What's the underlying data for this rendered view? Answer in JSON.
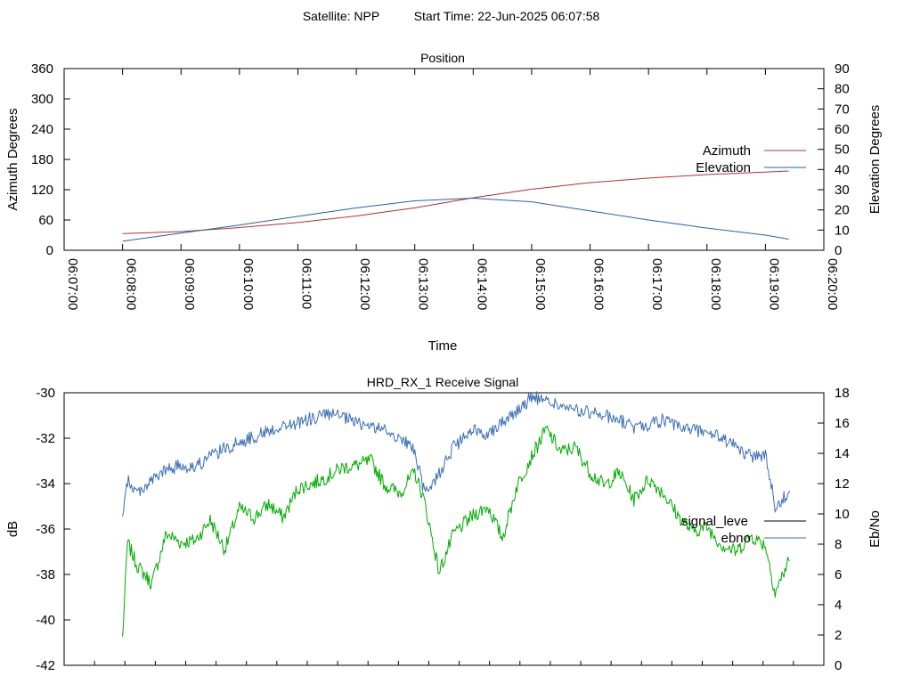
{
  "header": {
    "satellite_label": "Satellite: NPP",
    "start_time_label": "Start Time: 22-Jun-2025 06:07:58"
  },
  "colors": {
    "azimuth": "#b03030",
    "elevation": "#2a5ea8",
    "signal_level": "#000000",
    "signal_level_trace": "#00aa00",
    "ebno": "#3a6db5"
  },
  "chart_data": [
    {
      "type": "line",
      "title": "Position",
      "xlabel": "Time",
      "ylabel": "Azimuth Degrees",
      "y2label": "Elevation Degrees",
      "xlim": [
        "06:07:00",
        "06:20:00"
      ],
      "ylim": [
        0,
        360
      ],
      "y2lim": [
        0,
        90
      ],
      "x_ticks": [
        "06:07:00",
        "06:08:00",
        "06:09:00",
        "06:10:00",
        "06:11:00",
        "06:12:00",
        "06:13:00",
        "06:14:00",
        "06:15:00",
        "06:16:00",
        "06:17:00",
        "06:18:00",
        "06:19:00",
        "06:20:00"
      ],
      "y_ticks": [
        0,
        60,
        120,
        180,
        240,
        300,
        360
      ],
      "y2_ticks": [
        0,
        10,
        20,
        30,
        40,
        50,
        60,
        70,
        80,
        90
      ],
      "legend_position": "right",
      "grid": false,
      "series": [
        {
          "name": "Azimuth",
          "axis": "left",
          "x": [
            "06:08:00",
            "06:09:00",
            "06:10:00",
            "06:11:00",
            "06:12:00",
            "06:13:00",
            "06:14:00",
            "06:15:00",
            "06:16:00",
            "06:17:00",
            "06:18:00",
            "06:19:00",
            "06:19:24"
          ],
          "y": [
            33,
            37,
            45,
            55,
            68,
            84,
            104,
            121,
            134,
            143,
            150,
            155,
            157
          ]
        },
        {
          "name": "Elevation",
          "axis": "right",
          "x": [
            "06:08:00",
            "06:09:00",
            "06:10:00",
            "06:11:00",
            "06:12:00",
            "06:13:00",
            "06:14:00",
            "06:15:00",
            "06:16:00",
            "06:17:00",
            "06:18:00",
            "06:19:00",
            "06:19:24"
          ],
          "y": [
            4.5,
            8.5,
            12.5,
            16.8,
            21,
            24.5,
            25.8,
            24,
            19.5,
            15,
            11,
            7.5,
            5.5
          ]
        }
      ]
    },
    {
      "type": "line",
      "title": "HRD_RX_1 Receive Signal",
      "ylabel": "dB",
      "y2label": "Eb/No",
      "ylim": [
        -42,
        -30
      ],
      "y2lim": [
        0,
        18
      ],
      "y_ticks": [
        -42,
        -40,
        -38,
        -36,
        -34,
        -32,
        -30
      ],
      "y2_ticks": [
        0,
        2,
        4,
        6,
        8,
        10,
        12,
        14,
        16,
        18
      ],
      "x_tick_count": 26,
      "legend_position": "right",
      "grid": false,
      "series": [
        {
          "name": "signal_leve",
          "axis": "left",
          "x": [
            "06:08:00",
            "06:08:05",
            "06:08:15",
            "06:08:30",
            "06:08:45",
            "06:09:00",
            "06:09:15",
            "06:09:30",
            "06:09:45",
            "06:10:00",
            "06:10:15",
            "06:10:30",
            "06:10:45",
            "06:11:00",
            "06:11:15",
            "06:11:30",
            "06:11:45",
            "06:12:00",
            "06:12:15",
            "06:12:30",
            "06:12:45",
            "06:13:00",
            "06:13:10",
            "06:13:25",
            "06:13:40",
            "06:14:00",
            "06:14:15",
            "06:14:30",
            "06:14:45",
            "06:15:00",
            "06:15:15",
            "06:15:30",
            "06:15:45",
            "06:16:00",
            "06:16:15",
            "06:16:30",
            "06:16:45",
            "06:17:00",
            "06:17:15",
            "06:17:30",
            "06:17:45",
            "06:18:00",
            "06:18:15",
            "06:18:30",
            "06:18:45",
            "06:19:00",
            "06:19:10",
            "06:19:25"
          ],
          "y": [
            -40.8,
            -36.6,
            -37.6,
            -38.4,
            -36.2,
            -36.6,
            -36.5,
            -35.6,
            -36.9,
            -35.1,
            -35.5,
            -34.9,
            -35.5,
            -34.2,
            -34.0,
            -33.7,
            -33.3,
            -33.2,
            -33.0,
            -34.1,
            -34.4,
            -33.5,
            -34.8,
            -37.9,
            -36.2,
            -35.4,
            -35.0,
            -36.4,
            -34.1,
            -32.8,
            -31.6,
            -32.6,
            -32.4,
            -33.5,
            -34.1,
            -33.5,
            -34.7,
            -33.8,
            -34.4,
            -35.4,
            -36.1,
            -35.9,
            -36.7,
            -37.0,
            -36.3,
            -36.7,
            -38.8,
            -37.3
          ]
        },
        {
          "name": "ebno",
          "axis": "right",
          "x": [
            "06:08:00",
            "06:08:05",
            "06:08:15",
            "06:08:30",
            "06:08:45",
            "06:09:00",
            "06:09:15",
            "06:09:30",
            "06:09:45",
            "06:10:00",
            "06:10:15",
            "06:10:30",
            "06:10:45",
            "06:11:00",
            "06:11:15",
            "06:11:30",
            "06:11:45",
            "06:12:00",
            "06:12:15",
            "06:12:30",
            "06:12:45",
            "06:13:00",
            "06:13:10",
            "06:13:25",
            "06:13:40",
            "06:14:00",
            "06:14:15",
            "06:14:30",
            "06:14:45",
            "06:15:00",
            "06:15:15",
            "06:15:30",
            "06:15:45",
            "06:16:00",
            "06:16:15",
            "06:16:30",
            "06:16:45",
            "06:17:00",
            "06:17:15",
            "06:17:30",
            "06:17:45",
            "06:18:00",
            "06:18:15",
            "06:18:30",
            "06:18:45",
            "06:19:00",
            "06:19:10",
            "06:19:25"
          ],
          "y": [
            9.6,
            12.2,
            11.4,
            12.2,
            12.9,
            13.2,
            13.1,
            13.8,
            14.3,
            14.7,
            15.1,
            15.5,
            15.8,
            16.0,
            16.3,
            16.6,
            16.4,
            16.0,
            15.8,
            15.5,
            15.0,
            14.2,
            11.3,
            12.7,
            14.4,
            15.5,
            15.3,
            16.1,
            16.8,
            17.7,
            17.5,
            17.1,
            16.8,
            16.7,
            16.5,
            16.2,
            15.7,
            15.9,
            16.2,
            15.7,
            15.6,
            15.4,
            15.0,
            14.4,
            13.8,
            13.9,
            10.5,
            11.5
          ]
        }
      ]
    }
  ]
}
